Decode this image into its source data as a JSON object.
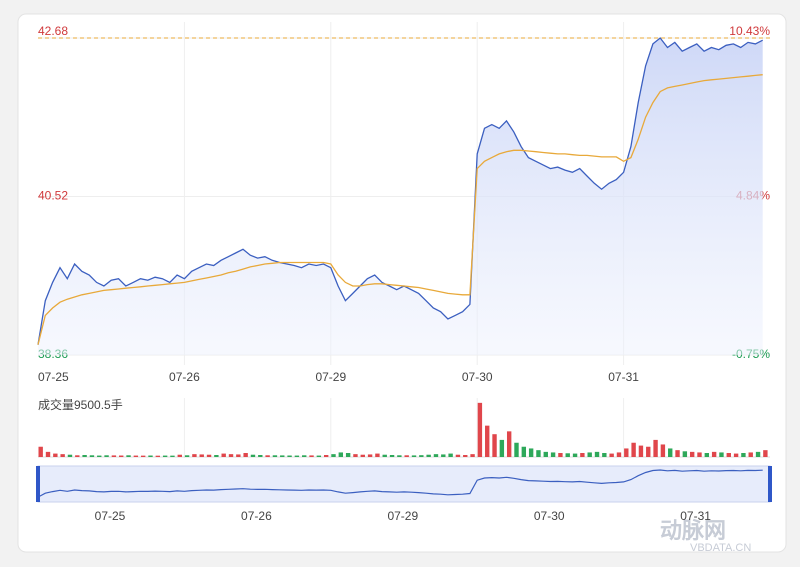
{
  "chart_data": {
    "type": "line",
    "day_labels": [
      "07-25",
      "07-26",
      "07-29",
      "07-30",
      "07-31"
    ],
    "points_per_day": 20,
    "ylim": [
      38.36,
      42.68
    ],
    "yticks": [
      38.36,
      40.52,
      42.68
    ],
    "ytick_colors": [
      "#1a9b52",
      "#d0393b",
      "#d0393b"
    ],
    "y2lim": [
      -0.75,
      10.43
    ],
    "y2ticks": [
      {
        "value": -0.75,
        "label": "-0.75%"
      },
      {
        "value": 4.84,
        "label": "4.84%"
      },
      {
        "value": 10.43,
        "label": "10.43%"
      }
    ],
    "grid": true,
    "series": [
      {
        "name": "price",
        "color": "#3b5fc0",
        "values": [
          38.5,
          39.1,
          39.35,
          39.55,
          39.4,
          39.6,
          39.5,
          39.45,
          39.35,
          39.3,
          39.38,
          39.4,
          39.3,
          39.35,
          39.4,
          39.38,
          39.42,
          39.4,
          39.35,
          39.45,
          39.4,
          39.5,
          39.55,
          39.6,
          39.58,
          39.65,
          39.7,
          39.75,
          39.8,
          39.72,
          39.68,
          39.7,
          39.65,
          39.62,
          39.6,
          39.58,
          39.55,
          39.6,
          39.58,
          39.6,
          39.55,
          39.3,
          39.1,
          39.2,
          39.3,
          39.4,
          39.45,
          39.35,
          39.3,
          39.25,
          39.3,
          39.25,
          39.2,
          39.1,
          39.0,
          38.95,
          38.85,
          38.9,
          38.95,
          39.05,
          41.1,
          41.45,
          41.5,
          41.45,
          41.55,
          41.4,
          41.2,
          41.05,
          41.0,
          40.95,
          40.9,
          40.92,
          40.88,
          40.85,
          40.9,
          40.8,
          40.7,
          40.62,
          40.7,
          40.75,
          40.85,
          41.2,
          41.8,
          42.3,
          42.6,
          42.68,
          42.55,
          42.62,
          42.5,
          42.55,
          42.6,
          42.5,
          42.55,
          42.52,
          42.58,
          42.6,
          42.55,
          42.62,
          42.6,
          42.65
        ]
      },
      {
        "name": "average",
        "color": "#e8a93a",
        "values": [
          38.5,
          38.9,
          39.0,
          39.08,
          39.12,
          39.15,
          39.18,
          39.2,
          39.22,
          39.24,
          39.25,
          39.26,
          39.27,
          39.28,
          39.29,
          39.3,
          39.31,
          39.32,
          39.33,
          39.34,
          39.35,
          39.37,
          39.39,
          39.41,
          39.43,
          39.45,
          39.48,
          39.5,
          39.53,
          39.56,
          39.58,
          39.6,
          39.61,
          39.62,
          39.62,
          39.62,
          39.62,
          39.62,
          39.62,
          39.62,
          39.6,
          39.45,
          39.35,
          39.3,
          39.3,
          39.32,
          39.33,
          39.33,
          39.32,
          39.31,
          39.3,
          39.29,
          39.28,
          39.26,
          39.24,
          39.22,
          39.2,
          39.19,
          39.18,
          39.18,
          40.9,
          41.0,
          41.05,
          41.1,
          41.13,
          41.15,
          41.15,
          41.14,
          41.13,
          41.12,
          41.11,
          41.1,
          41.1,
          41.09,
          41.08,
          41.08,
          41.07,
          41.06,
          41.06,
          41.06,
          41.0,
          41.05,
          41.3,
          41.6,
          41.8,
          41.95,
          42.0,
          42.02,
          42.04,
          42.06,
          42.08,
          42.1,
          42.11,
          42.12,
          42.13,
          42.14,
          42.15,
          42.16,
          42.17,
          42.18
        ]
      }
    ],
    "volume_label": "成交量9500.5手",
    "volume_ylim": [
      0,
      10000
    ],
    "volume": [
      1800,
      900,
      600,
      500,
      400,
      300,
      350,
      300,
      250,
      300,
      280,
      260,
      300,
      250,
      240,
      260,
      230,
      250,
      240,
      400,
      300,
      500,
      450,
      400,
      350,
      600,
      500,
      450,
      700,
      400,
      350,
      300,
      300,
      280,
      260,
      250,
      300,
      280,
      250,
      350,
      500,
      800,
      700,
      500,
      400,
      450,
      600,
      400,
      350,
      300,
      300,
      280,
      320,
      400,
      500,
      450,
      600,
      400,
      350,
      500,
      9500,
      5500,
      4000,
      3000,
      4500,
      2500,
      1800,
      1500,
      1200,
      900,
      800,
      700,
      650,
      600,
      700,
      800,
      900,
      700,
      600,
      800,
      1500,
      2500,
      2000,
      1800,
      3000,
      2200,
      1500,
      1200,
      1000,
      900,
      800,
      700,
      900,
      800,
      700,
      600,
      700,
      800,
      900,
      1200
    ],
    "watermark": "VBDATA.CN",
    "watermark_brand": "动脉网"
  }
}
